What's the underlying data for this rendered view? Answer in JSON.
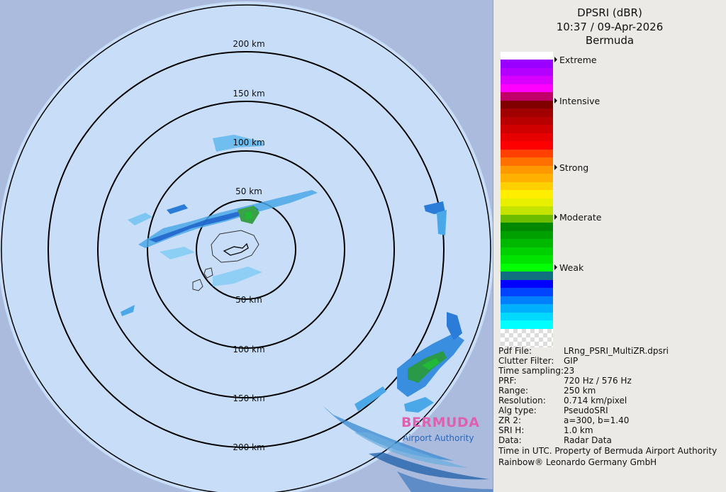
{
  "header": {
    "title": "DPSRI (dBR)",
    "datetime": "10:37 / 09-Apr-2026",
    "location": "Bermuda"
  },
  "radar": {
    "ring_labels": {
      "top_200": "200 km",
      "top_150": "150 km",
      "top_100": "100 km",
      "top_50": "50 km",
      "bottom_50": "50 km",
      "bottom_100": "100 km",
      "bottom_150": "150 km",
      "bottom_200": "200 km"
    },
    "colors": {
      "background_out_of_range": "#aabbdd",
      "coverage": "#c8def8",
      "ring": "#000000"
    }
  },
  "legend": {
    "labels": {
      "extreme": "Extreme",
      "intensive": "Intensive",
      "strong": "Strong",
      "moderate": "Moderate",
      "weak": "Weak"
    },
    "colors": [
      "#ffffff",
      "#9a00ff",
      "#b400ff",
      "#d800ff",
      "#ff00ff",
      "#c00068",
      "#800000",
      "#a00000",
      "#b80000",
      "#d00000",
      "#e80000",
      "#ff0000",
      "#ff4000",
      "#ff7000",
      "#ff9900",
      "#ffb000",
      "#ffd000",
      "#ffee00",
      "#e8f000",
      "#c4e400",
      "#6cbc00",
      "#008800",
      "#00a000",
      "#00b800",
      "#00d000",
      "#00e400",
      "#00ff00",
      "#107080",
      "#0000ff",
      "#0044ff",
      "#0080ff",
      "#00b0ff",
      "#00d8ff",
      "#00ffff"
    ]
  },
  "metadata": [
    {
      "key": "Pdf File:",
      "value": "LRng_PSRI_MultiZR.dpsri"
    },
    {
      "key": "Clutter Filter:",
      "value": "GIP"
    },
    {
      "key": "Time sampling:",
      "value": "23"
    },
    {
      "key": "PRF:",
      "value": "720 Hz / 576 Hz"
    },
    {
      "key": "Range:",
      "value": "250 km"
    },
    {
      "key": "Resolution:",
      "value": "0.714 km/pixel"
    },
    {
      "key": "Alg type:",
      "value": "PseudoSRI"
    },
    {
      "key": "ZR 2:",
      "value": "a=300, b=1.40"
    },
    {
      "key": "SRI H:",
      "value": "1.0 km"
    },
    {
      "key": "Data:",
      "value": "Radar Data"
    }
  ],
  "footer": {
    "line1": "Time in UTC. Property of Bermuda Airport Authority",
    "line2": "Rainbow® Leonardo Germany GmbH"
  },
  "logo": {
    "name": "BERMUDA",
    "subtitle": "Airport Authority"
  }
}
